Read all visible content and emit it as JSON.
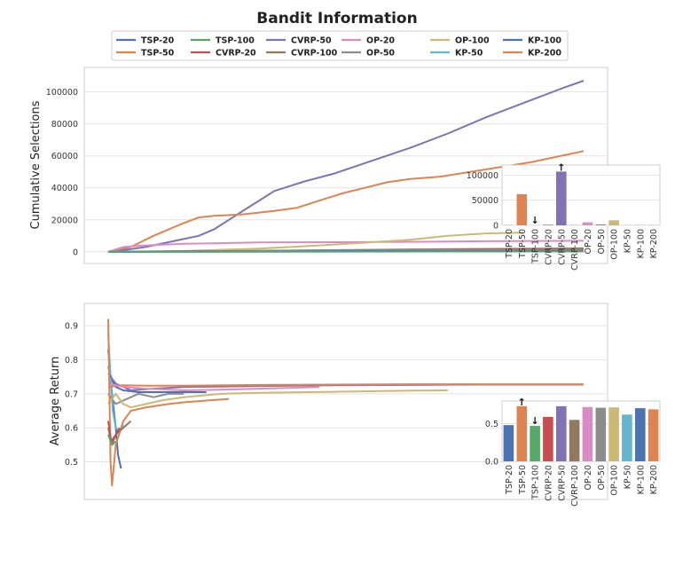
{
  "chart_data": {
    "type": "line",
    "title": "Bandit Information",
    "legend": [
      {
        "name": "TSP-20",
        "color": "#4c72b0"
      },
      {
        "name": "TSP-50",
        "color": "#dd8452"
      },
      {
        "name": "TSP-100",
        "color": "#55a868"
      },
      {
        "name": "CVRP-20",
        "color": "#c44e52"
      },
      {
        "name": "CVRP-50",
        "color": "#8172b3"
      },
      {
        "name": "CVRP-100",
        "color": "#937860"
      },
      {
        "name": "OP-20",
        "color": "#da8bc3"
      },
      {
        "name": "OP-50",
        "color": "#8c8c8c"
      },
      {
        "name": "OP-100",
        "color": "#ccb974"
      },
      {
        "name": "KP-50",
        "color": "#64b5cd"
      },
      {
        "name": "KP-100",
        "color": "#4c72b0"
      },
      {
        "name": "KP-200",
        "color": "#dd8452"
      }
    ],
    "panels": [
      {
        "ylabel": "Cumulative Selections",
        "ylim": [
          -4000,
          112000
        ],
        "yticks": [
          "0",
          "20000",
          "40000",
          "60000",
          "80000",
          "100000"
        ],
        "ytick_values": [
          0,
          20000,
          40000,
          60000,
          80000,
          100000
        ],
        "series": [
          {
            "name": "CVRP-50",
            "color": "#8172b3",
            "points": [
              [
                0,
                0
              ],
              [
                2,
                1000
              ],
              [
                5,
                3000
              ],
              [
                8,
                6000
              ],
              [
                10,
                8000
              ],
              [
                12,
                10000
              ],
              [
                14,
                14000
              ],
              [
                16,
                20000
              ],
              [
                18,
                26000
              ],
              [
                20,
                32000
              ],
              [
                22,
                38000
              ],
              [
                24,
                41000
              ],
              [
                26,
                44000
              ],
              [
                30,
                49000
              ],
              [
                35,
                57000
              ],
              [
                40,
                65000
              ],
              [
                45,
                74000
              ],
              [
                50,
                84000
              ],
              [
                55,
                93000
              ],
              [
                60,
                102000
              ],
              [
                63,
                107000
              ]
            ]
          },
          {
            "name": "KP-200",
            "color": "#dd8452",
            "points": [
              [
                0,
                0
              ],
              [
                3,
                3000
              ],
              [
                6,
                10000
              ],
              [
                10,
                18000
              ],
              [
                12,
                21500
              ],
              [
                14,
                22500
              ],
              [
                18,
                23500
              ],
              [
                22,
                25500
              ],
              [
                25,
                27500
              ],
              [
                28,
                32000
              ],
              [
                31,
                36500
              ],
              [
                34,
                40000
              ],
              [
                37,
                43500
              ],
              [
                40,
                45500
              ],
              [
                44,
                47000
              ],
              [
                48,
                50000
              ],
              [
                52,
                53000
              ],
              [
                56,
                56000
              ],
              [
                60,
                60000
              ],
              [
                63,
                63000
              ]
            ]
          },
          {
            "name": "OP-20",
            "color": "#da8bc3",
            "points": [
              [
                0,
                0
              ],
              [
                2,
                3000
              ],
              [
                5,
                4000
              ],
              [
                10,
                5000
              ],
              [
                20,
                5800
              ],
              [
                30,
                6000
              ],
              [
                40,
                6200
              ],
              [
                50,
                6600
              ],
              [
                63,
                6900
              ]
            ]
          },
          {
            "name": "OP-100",
            "color": "#ccb974",
            "points": [
              [
                0,
                0
              ],
              [
                10,
                500
              ],
              [
                20,
                2000
              ],
              [
                28,
                4000
              ],
              [
                35,
                6000
              ],
              [
                40,
                7500
              ],
              [
                45,
                10000
              ],
              [
                50,
                11500
              ],
              [
                55,
                12000
              ]
            ]
          },
          {
            "name": "OP-50",
            "color": "#8c8c8c",
            "points": [
              [
                0,
                0
              ],
              [
                20,
                600
              ],
              [
                40,
                1500
              ],
              [
                63,
                2200
              ]
            ]
          },
          {
            "name": "CVRP-20",
            "color": "#c44e52",
            "points": [
              [
                0,
                0
              ],
              [
                30,
                900
              ],
              [
                63,
                1800
              ]
            ]
          },
          {
            "name": "CVRP-100",
            "color": "#937860",
            "points": [
              [
                0,
                0
              ],
              [
                30,
                700
              ],
              [
                63,
                1400
              ]
            ]
          },
          {
            "name": "TSP-50",
            "color": "#dd8452",
            "points": [
              [
                0,
                0
              ],
              [
                30,
                600
              ],
              [
                63,
                1200
              ]
            ]
          },
          {
            "name": "KP-50",
            "color": "#64b5cd",
            "points": [
              [
                0,
                0
              ],
              [
                63,
                800
              ]
            ]
          },
          {
            "name": "KP-100",
            "color": "#4c72b0",
            "points": [
              [
                0,
                0
              ],
              [
                63,
                700
              ]
            ]
          },
          {
            "name": "TSP-20",
            "color": "#4c72b0",
            "points": [
              [
                0,
                0
              ],
              [
                63,
                400
              ]
            ]
          },
          {
            "name": "TSP-100",
            "color": "#55a868",
            "points": [
              [
                0,
                0
              ],
              [
                63,
                200
              ]
            ]
          }
        ],
        "inset": {
          "categories": [
            "TSP-20",
            "TSP-50",
            "TSP-100",
            "CVRP-20",
            "CVRP-50",
            "CVRP-100",
            "OP-20",
            "OP-50",
            "OP-100",
            "KP-50",
            "KP-100",
            "KP-200"
          ],
          "values": [
            300,
            62000,
            200,
            1000,
            107000,
            500,
            6000,
            2000,
            10000,
            400,
            300,
            500
          ],
          "colors": [
            "#4c72b0",
            "#dd8452",
            "#55a868",
            "#c44e52",
            "#8172b3",
            "#937860",
            "#da8bc3",
            "#8c8c8c",
            "#ccb974",
            "#64b5cd",
            "#4c72b0",
            "#dd8452"
          ],
          "ylim": [
            0,
            120000
          ],
          "yticks": [
            "0",
            "50000",
            "100000"
          ],
          "ytick_values": [
            0,
            50000,
            100000
          ],
          "arrow_up": "CVRP-50",
          "arrow_down": "TSP-100",
          "arrow_up_glyph": "↑",
          "arrow_down_glyph": "↓"
        }
      },
      {
        "ylabel": "Average Return",
        "ylim": [
          0.405,
          0.95
        ],
        "yticks": [
          "0.5",
          "0.6",
          "0.7",
          "0.8",
          "0.9"
        ],
        "ytick_values": [
          0.5,
          0.6,
          0.7,
          0.8,
          0.9
        ],
        "series": [
          {
            "name": "TSP-20",
            "color": "#4c72b0",
            "points": [
              [
                0,
                0.83
              ],
              [
                0.5,
                0.7
              ],
              [
                1,
                0.6
              ],
              [
                1.3,
                0.52
              ],
              [
                1.7,
                0.48
              ]
            ]
          },
          {
            "name": "KP-100",
            "color": "#4c72b0",
            "points": [
              [
                0,
                0.78
              ],
              [
                0.5,
                0.74
              ],
              [
                1,
                0.72
              ],
              [
                2,
                0.71
              ],
              [
                4,
                0.705
              ],
              [
                8,
                0.705
              ],
              [
                13,
                0.705
              ]
            ]
          },
          {
            "name": "KP-50",
            "color": "#64b5cd",
            "points": [
              [
                0,
                0.88
              ],
              [
                0.3,
                0.75
              ],
              [
                0.6,
                0.65
              ],
              [
                1,
                0.6
              ],
              [
                1.5,
                0.59
              ],
              [
                2,
                0.61
              ]
            ]
          },
          {
            "name": "OP-50",
            "color": "#8c8c8c",
            "points": [
              [
                0,
                0.7
              ],
              [
                1,
                0.67
              ],
              [
                2,
                0.68
              ],
              [
                3,
                0.69
              ],
              [
                4,
                0.7
              ],
              [
                6,
                0.69
              ],
              [
                8,
                0.7
              ],
              [
                10,
                0.7
              ]
            ]
          },
          {
            "name": "CVRP-50",
            "color": "#8172b3",
            "points": [
              [
                0,
                0.76
              ],
              [
                1,
                0.73
              ],
              [
                3,
                0.71
              ],
              [
                6,
                0.715
              ],
              [
                10,
                0.72
              ],
              [
                20,
                0.723
              ],
              [
                30,
                0.725
              ],
              [
                40,
                0.726
              ],
              [
                50,
                0.727
              ],
              [
                63,
                0.727
              ]
            ]
          },
          {
            "name": "TSP-50",
            "color": "#dd8452",
            "points": [
              [
                0,
                0.72
              ],
              [
                2,
                0.725
              ],
              [
                5,
                0.724
              ],
              [
                10,
                0.724
              ],
              [
                20,
                0.726
              ],
              [
                30,
                0.727
              ],
              [
                40,
                0.728
              ],
              [
                50,
                0.728
              ],
              [
                63,
                0.728
              ]
            ]
          },
          {
            "name": "OP-20",
            "color": "#da8bc3",
            "points": [
              [
                0,
                0.73
              ],
              [
                2,
                0.72
              ],
              [
                5,
                0.715
              ],
              [
                10,
                0.71
              ],
              [
                15,
                0.712
              ],
              [
                20,
                0.715
              ],
              [
                25,
                0.718
              ],
              [
                28,
                0.72
              ]
            ]
          },
          {
            "name": "OP-100",
            "color": "#ccb974",
            "points": [
              [
                0,
                0.67
              ],
              [
                1,
                0.7
              ],
              [
                2,
                0.67
              ],
              [
                3,
                0.66
              ],
              [
                5,
                0.67
              ],
              [
                7,
                0.68
              ],
              [
                10,
                0.69
              ],
              [
                15,
                0.7
              ],
              [
                20,
                0.703
              ],
              [
                30,
                0.706
              ],
              [
                40,
                0.709
              ],
              [
                45,
                0.71
              ]
            ]
          },
          {
            "name": "KP-200",
            "color": "#dd8452",
            "points": [
              [
                0,
                0.92
              ],
              [
                0.3,
                0.5
              ],
              [
                0.5,
                0.43
              ],
              [
                1,
                0.55
              ],
              [
                2,
                0.62
              ],
              [
                3,
                0.65
              ],
              [
                5,
                0.66
              ],
              [
                8,
                0.67
              ],
              [
                10,
                0.675
              ],
              [
                13,
                0.68
              ],
              [
                16,
                0.685
              ]
            ]
          },
          {
            "name": "CVRP-100",
            "color": "#937860",
            "points": [
              [
                0,
                0.6
              ],
              [
                0.5,
                0.55
              ],
              [
                1,
                0.58
              ],
              [
                2,
                0.6
              ],
              [
                3,
                0.62
              ]
            ]
          },
          {
            "name": "CVRP-20",
            "color": "#c44e52",
            "points": [
              [
                0,
                0.62
              ],
              [
                0.4,
                0.56
              ],
              [
                1,
                0.58
              ],
              [
                1.5,
                0.6
              ]
            ]
          },
          {
            "name": "TSP-100",
            "color": "#55a868",
            "points": [
              [
                0,
                0.58
              ],
              [
                0.5,
                0.55
              ],
              [
                1,
                0.56
              ]
            ]
          }
        ],
        "inset": {
          "categories": [
            "TSP-20",
            "TSP-50",
            "TSP-100",
            "CVRP-20",
            "CVRP-50",
            "CVRP-100",
            "OP-20",
            "OP-50",
            "OP-100",
            "KP-50",
            "KP-100",
            "KP-200"
          ],
          "values": [
            0.48,
            0.73,
            0.47,
            0.59,
            0.73,
            0.55,
            0.72,
            0.71,
            0.715,
            0.62,
            0.705,
            0.69
          ],
          "colors": [
            "#4c72b0",
            "#dd8452",
            "#55a868",
            "#c44e52",
            "#8172b3",
            "#937860",
            "#da8bc3",
            "#8c8c8c",
            "#ccb974",
            "#64b5cd",
            "#4c72b0",
            "#dd8452"
          ],
          "ylim": [
            0,
            0.8
          ],
          "yticks": [
            "0.0",
            "0.5"
          ],
          "ytick_values": [
            0.0,
            0.5
          ],
          "arrow_up": "TSP-50",
          "arrow_down": "TSP-100",
          "arrow_up_glyph": "↑",
          "arrow_down_glyph": "↓"
        }
      }
    ]
  }
}
